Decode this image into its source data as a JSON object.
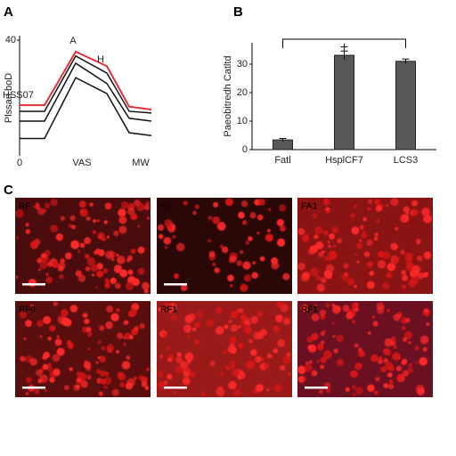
{
  "panel_labels": [
    "A",
    "B",
    "C"
  ],
  "chart_data": [
    {
      "type": "line",
      "y_label": "Plssan boD",
      "annotations": [
        "A",
        "H",
        "HSS07"
      ],
      "categories": [
        "0",
        null,
        "VAS",
        null,
        null,
        "MW"
      ],
      "ylim": [
        0,
        40
      ],
      "yticks": [
        40
      ],
      "series": [
        {
          "name": "red",
          "color": "#e0303a",
          "values": [
            17.5,
            17.5,
            36,
            31,
            17,
            16
          ]
        },
        {
          "name": "black 1",
          "color": "#111111",
          "values": [
            15.4,
            15.4,
            34.5,
            28.6,
            15.4,
            14.8
          ]
        },
        {
          "name": "black 2",
          "color": "#111111",
          "values": [
            12,
            12,
            32,
            25,
            13,
            12
          ]
        },
        {
          "name": "black 3",
          "color": "#111111",
          "values": [
            6,
            6,
            27,
            21.5,
            8,
            7
          ]
        }
      ]
    },
    {
      "type": "bar",
      "y_label": "Paeobitredh Catltd",
      "annotation": "+",
      "categories": [
        "Fatl",
        "HsplCF7",
        "LCS3"
      ],
      "values": [
        3.4,
        33.1,
        31
      ],
      "errors": [
        0.5,
        1.5,
        0.8
      ],
      "color": "#585858",
      "ylim": [
        0,
        37.5
      ],
      "yticks": [
        0,
        10,
        20,
        30
      ]
    }
  ],
  "images": [
    {
      "label": "RF"
    },
    {
      "label": "RF"
    },
    {
      "label": "FA1"
    },
    {
      "label": "RF0"
    },
    {
      "label": "RF1"
    },
    {
      "label": "RF1"
    }
  ]
}
